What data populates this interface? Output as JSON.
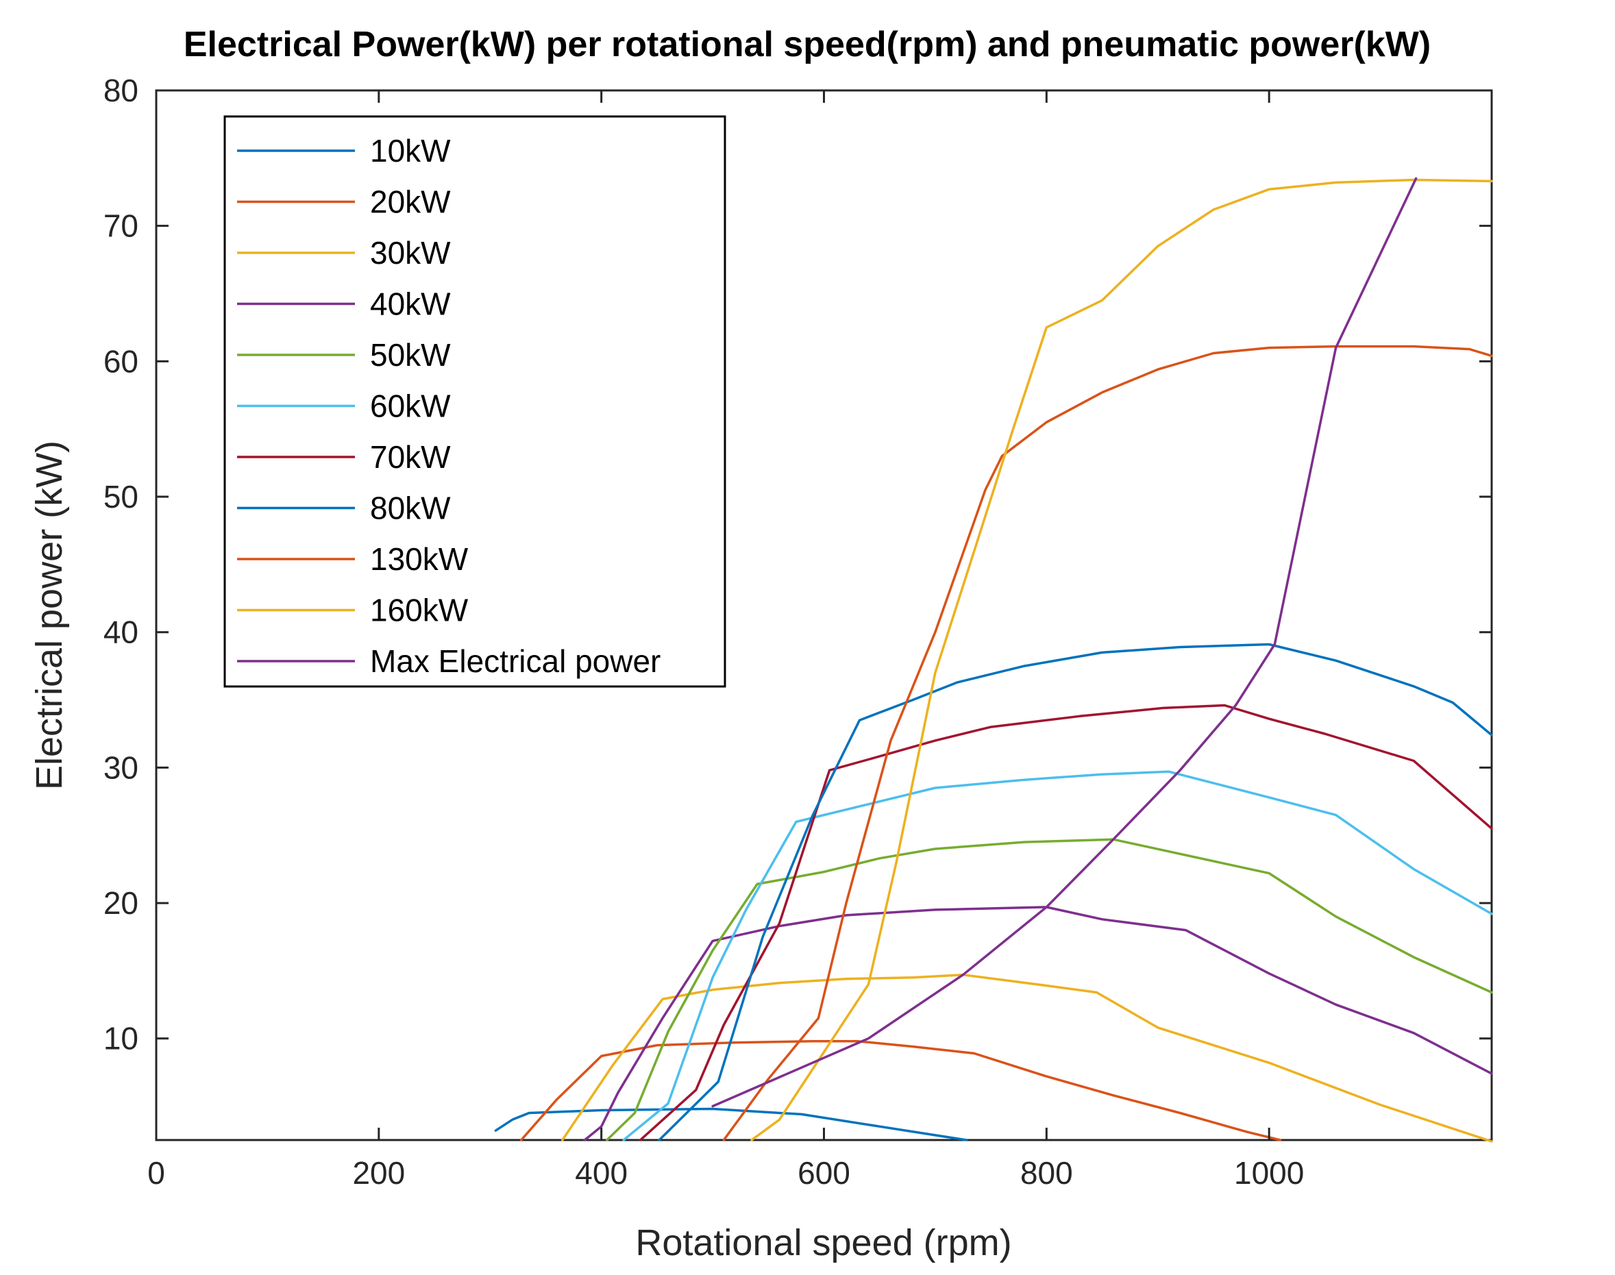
{
  "chart_data": {
    "type": "line",
    "title": "Electrical Power(kW) per rotational speed(rpm) and pneumatic power(kW)",
    "xlabel": "Rotational speed (rpm)",
    "ylabel": "Electrical power (kW)",
    "xlim": [
      0,
      1200
    ],
    "ylim": [
      2.5,
      80
    ],
    "xticks": [
      0,
      200,
      400,
      600,
      800,
      1000
    ],
    "yticks": [
      10,
      20,
      30,
      40,
      50,
      60,
      70,
      80
    ],
    "legend_position": "top-left",
    "grid": false,
    "series": [
      {
        "name": "10kW",
        "color": "#0072BD",
        "x": [
          305,
          320,
          335,
          400,
          500,
          580,
          650,
          728
        ],
        "y": [
          3.2,
          4.0,
          4.5,
          4.7,
          4.8,
          4.4,
          3.5,
          2.5
        ]
      },
      {
        "name": "20kW",
        "color": "#D95319",
        "x": [
          328,
          360,
          400,
          450,
          520,
          590,
          630,
          680,
          735,
          800,
          860,
          920,
          980,
          1010
        ],
        "y": [
          2.5,
          5.5,
          8.7,
          9.5,
          9.7,
          9.8,
          9.8,
          9.4,
          8.9,
          7.2,
          5.8,
          4.5,
          3.1,
          2.5
        ]
      },
      {
        "name": "30kW",
        "color": "#EDB120",
        "x": [
          365,
          410,
          455,
          500,
          560,
          620,
          680,
          725,
          800,
          845,
          900,
          1000,
          1100,
          1200
        ],
        "y": [
          2.5,
          8.0,
          12.9,
          13.6,
          14.1,
          14.4,
          14.5,
          14.7,
          13.9,
          13.4,
          10.8,
          8.2,
          5.1,
          2.4
        ]
      },
      {
        "name": "40kW",
        "color": "#7E2F8E",
        "x": [
          385,
          400,
          415,
          455,
          500,
          560,
          620,
          700,
          800,
          850,
          925,
          1000,
          1060,
          1130,
          1200
        ],
        "y": [
          2.5,
          3.5,
          6.0,
          11.5,
          17.2,
          18.3,
          19.1,
          19.5,
          19.7,
          18.8,
          18.0,
          14.8,
          12.5,
          10.4,
          7.4
        ]
      },
      {
        "name": "50kW",
        "color": "#77AC30",
        "x": [
          405,
          430,
          460,
          500,
          540,
          600,
          650,
          700,
          780,
          860,
          1000,
          1060,
          1130,
          1200
        ],
        "y": [
          2.5,
          4.5,
          10.5,
          16.5,
          21.4,
          22.3,
          23.3,
          24.0,
          24.5,
          24.7,
          22.2,
          19.0,
          16.0,
          13.4
        ]
      },
      {
        "name": "60kW",
        "color": "#4DBEEE",
        "x": [
          420,
          460,
          500,
          530,
          575,
          650,
          700,
          780,
          850,
          910,
          1000,
          1060,
          1130,
          1200
        ],
        "y": [
          2.5,
          5.2,
          14.5,
          19.5,
          26.0,
          27.5,
          28.5,
          29.1,
          29.5,
          29.7,
          27.8,
          26.5,
          22.5,
          19.2
        ]
      },
      {
        "name": "70kW",
        "color": "#A2142F",
        "x": [
          435,
          485,
          510,
          560,
          605,
          640,
          700,
          750,
          830,
          905,
          960,
          1000,
          1050,
          1130,
          1200
        ],
        "y": [
          2.5,
          6.2,
          11.0,
          18.5,
          29.8,
          30.6,
          32.0,
          33.0,
          33.8,
          34.4,
          34.6,
          33.6,
          32.5,
          30.5,
          25.5
        ]
      },
      {
        "name": "80kW",
        "color": "#0072BD",
        "x": [
          452,
          505,
          545,
          590,
          632,
          680,
          720,
          780,
          850,
          920,
          1000,
          1060,
          1130,
          1165,
          1200
        ],
        "y": [
          2.5,
          6.8,
          17.5,
          26.5,
          33.5,
          35.0,
          36.3,
          37.5,
          38.5,
          38.9,
          39.1,
          37.9,
          36.0,
          34.8,
          32.4
        ]
      },
      {
        "name": "130kW",
        "color": "#D95319",
        "x": [
          510,
          550,
          595,
          620,
          660,
          700,
          745,
          760,
          800,
          850,
          900,
          950,
          1000,
          1060,
          1130,
          1180,
          1200
        ],
        "y": [
          2.5,
          7.0,
          11.5,
          20.0,
          32.0,
          40.0,
          50.5,
          53.0,
          55.5,
          57.7,
          59.4,
          60.6,
          61.0,
          61.1,
          61.1,
          60.9,
          60.4
        ]
      },
      {
        "name": "160kW",
        "color": "#EDB120",
        "x": [
          535,
          560,
          600,
          640,
          665,
          700,
          735,
          770,
          800,
          850,
          900,
          950,
          1000,
          1060,
          1130,
          1200
        ],
        "y": [
          2.5,
          4.0,
          9.0,
          14.0,
          23.0,
          37.0,
          46.0,
          55.0,
          62.5,
          64.5,
          68.5,
          71.2,
          72.7,
          73.2,
          73.4,
          73.3
        ]
      },
      {
        "name": "Max Electrical power",
        "color": "#7E2F8E",
        "x": [
          500,
          640,
          725,
          800,
          860,
          920,
          970,
          1005,
          1060,
          1132
        ],
        "y": [
          5.0,
          10.0,
          14.7,
          19.7,
          24.7,
          29.8,
          34.6,
          39.1,
          61.0,
          73.5
        ]
      }
    ]
  }
}
